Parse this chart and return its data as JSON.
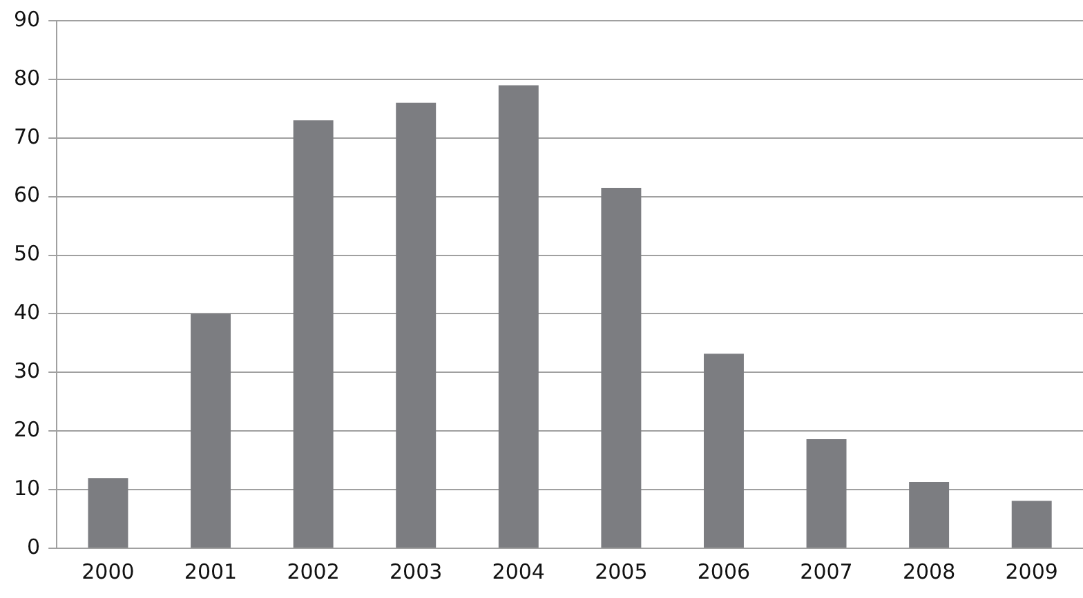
{
  "chart_data": {
    "type": "bar",
    "categories": [
      "2000",
      "2001",
      "2002",
      "2003",
      "2004",
      "2005",
      "2006",
      "2007",
      "2008",
      "2009"
    ],
    "values": [
      12,
      40,
      73,
      76,
      79,
      61.5,
      33.2,
      18.6,
      11.3,
      8.1
    ],
    "color": "#7c7d81",
    "ylim": [
      0,
      90
    ],
    "yticks": [
      0,
      10,
      20,
      30,
      40,
      50,
      60,
      70,
      80,
      90
    ],
    "grid": "y",
    "legend": false
  }
}
